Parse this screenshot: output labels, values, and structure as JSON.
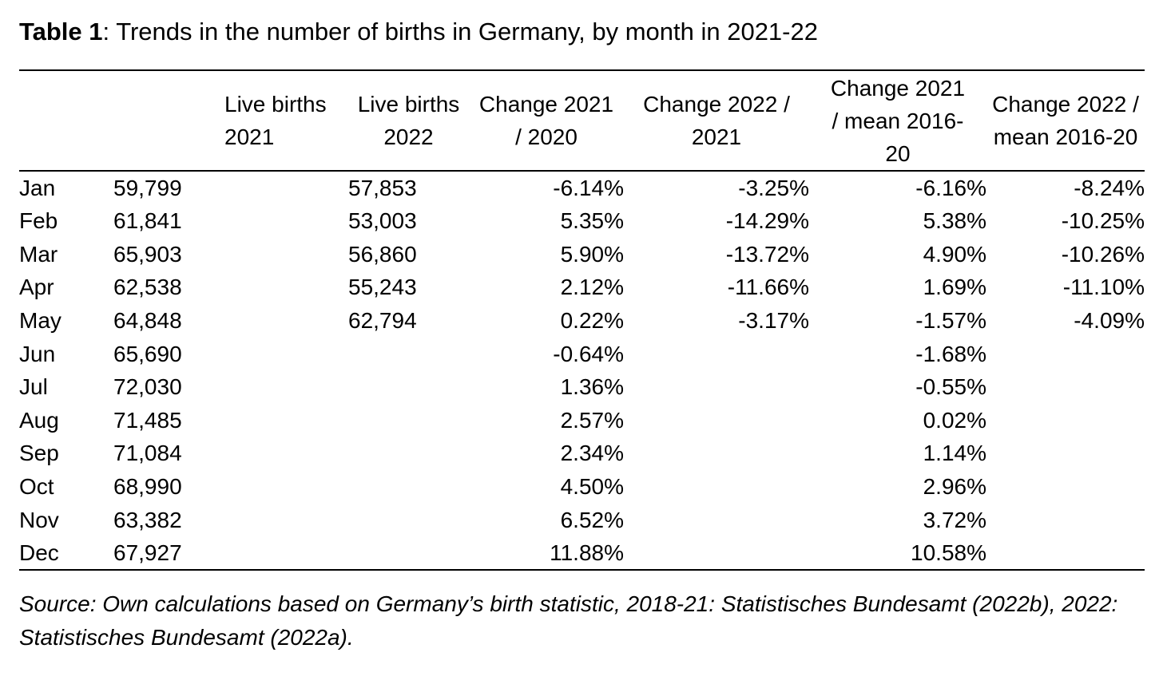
{
  "table": {
    "label": "Table 1",
    "caption": ": Trends in the number of births in Germany, by month in 2021-22",
    "columns": [
      "",
      "Live births 2021",
      "Live births 2022",
      "Change 2021 / 2020",
      "Change 2022 / 2021",
      "Change 2021 / mean 2016-20",
      "Change 2022 / mean 2016-20"
    ],
    "column_lines": [
      [],
      [
        "Live births",
        "2021"
      ],
      [
        "Live births",
        "2022"
      ],
      [
        "Change 2021",
        "/ 2020"
      ],
      [
        "Change 2022 /",
        "2021"
      ],
      [
        "Change 2021",
        "/ mean 2016-",
        "20"
      ],
      [
        "Change 2022 /",
        "mean 2016-20"
      ]
    ],
    "rows": [
      {
        "month": "Jan",
        "births_2021": "59,799",
        "births_2022": "57,853",
        "change_2021_2020": "-6.14%",
        "change_2022_2021": "-3.25%",
        "change_2021_mean": "-6.16%",
        "change_2022_mean": "-8.24%"
      },
      {
        "month": "Feb",
        "births_2021": "61,841",
        "births_2022": "53,003",
        "change_2021_2020": "5.35%",
        "change_2022_2021": "-14.29%",
        "change_2021_mean": "5.38%",
        "change_2022_mean": "-10.25%"
      },
      {
        "month": "Mar",
        "births_2021": "65,903",
        "births_2022": "56,860",
        "change_2021_2020": "5.90%",
        "change_2022_2021": "-13.72%",
        "change_2021_mean": "4.90%",
        "change_2022_mean": "-10.26%"
      },
      {
        "month": "Apr",
        "births_2021": "62,538",
        "births_2022": "55,243",
        "change_2021_2020": "2.12%",
        "change_2022_2021": "-11.66%",
        "change_2021_mean": "1.69%",
        "change_2022_mean": "-11.10%"
      },
      {
        "month": "May",
        "births_2021": "64,848",
        "births_2022": "62,794",
        "change_2021_2020": "0.22%",
        "change_2022_2021": "-3.17%",
        "change_2021_mean": "-1.57%",
        "change_2022_mean": "-4.09%"
      },
      {
        "month": "Jun",
        "births_2021": "65,690",
        "births_2022": "",
        "change_2021_2020": "-0.64%",
        "change_2022_2021": "",
        "change_2021_mean": "-1.68%",
        "change_2022_mean": ""
      },
      {
        "month": "Jul",
        "births_2021": "72,030",
        "births_2022": "",
        "change_2021_2020": "1.36%",
        "change_2022_2021": "",
        "change_2021_mean": "-0.55%",
        "change_2022_mean": ""
      },
      {
        "month": "Aug",
        "births_2021": "71,485",
        "births_2022": "",
        "change_2021_2020": "2.57%",
        "change_2022_2021": "",
        "change_2021_mean": "0.02%",
        "change_2022_mean": ""
      },
      {
        "month": "Sep",
        "births_2021": "71,084",
        "births_2022": "",
        "change_2021_2020": "2.34%",
        "change_2022_2021": "",
        "change_2021_mean": "1.14%",
        "change_2022_mean": ""
      },
      {
        "month": "Oct",
        "births_2021": "68,990",
        "births_2022": "",
        "change_2021_2020": "4.50%",
        "change_2022_2021": "",
        "change_2021_mean": "2.96%",
        "change_2022_mean": ""
      },
      {
        "month": "Nov",
        "births_2021": "63,382",
        "births_2022": "",
        "change_2021_2020": "6.52%",
        "change_2022_2021": "",
        "change_2021_mean": "3.72%",
        "change_2022_mean": ""
      },
      {
        "month": "Dec",
        "births_2021": "67,927",
        "births_2022": "",
        "change_2021_2020": "11.88%",
        "change_2022_2021": "",
        "change_2021_mean": "10.58%",
        "change_2022_mean": ""
      }
    ],
    "source": "Source: Own calculations based on Germany’s birth statistic, 2018-21: Statistisches Bundesamt (2022b), 2022: Statistisches Bundesamt (2022a)."
  }
}
